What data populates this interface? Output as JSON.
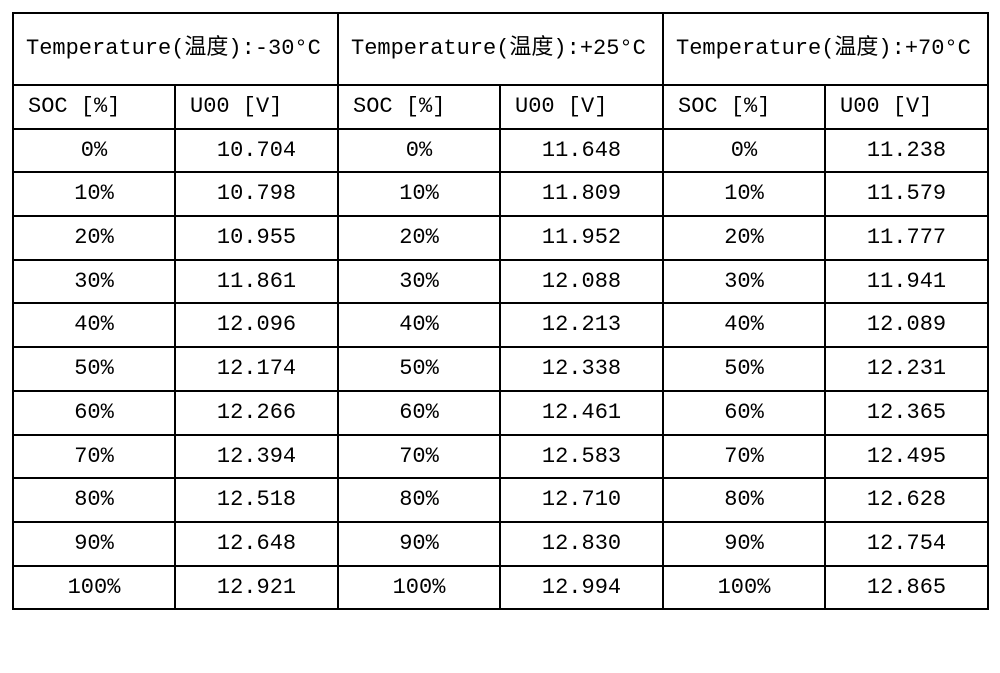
{
  "table": {
    "columns_per_group": [
      "SOC [%]",
      "U00 [V]"
    ],
    "groups": [
      {
        "header": "Temperature(温度):-30°C",
        "rows": [
          {
            "soc": "0%",
            "u00": "10.704"
          },
          {
            "soc": "10%",
            "u00": "10.798"
          },
          {
            "soc": "20%",
            "u00": "10.955"
          },
          {
            "soc": "30%",
            "u00": "11.861"
          },
          {
            "soc": "40%",
            "u00": "12.096"
          },
          {
            "soc": "50%",
            "u00": "12.174"
          },
          {
            "soc": "60%",
            "u00": "12.266"
          },
          {
            "soc": "70%",
            "u00": "12.394"
          },
          {
            "soc": "80%",
            "u00": "12.518"
          },
          {
            "soc": "90%",
            "u00": "12.648"
          },
          {
            "soc": "100%",
            "u00": "12.921"
          }
        ]
      },
      {
        "header": "Temperature(温度):+25°C",
        "rows": [
          {
            "soc": "0%",
            "u00": "11.648"
          },
          {
            "soc": "10%",
            "u00": "11.809"
          },
          {
            "soc": "20%",
            "u00": "11.952"
          },
          {
            "soc": "30%",
            "u00": "12.088"
          },
          {
            "soc": "40%",
            "u00": "12.213"
          },
          {
            "soc": "50%",
            "u00": "12.338"
          },
          {
            "soc": "60%",
            "u00": "12.461"
          },
          {
            "soc": "70%",
            "u00": "12.583"
          },
          {
            "soc": "80%",
            "u00": "12.710"
          },
          {
            "soc": "90%",
            "u00": "12.830"
          },
          {
            "soc": "100%",
            "u00": "12.994"
          }
        ]
      },
      {
        "header": "Temperature(温度):+70°C",
        "rows": [
          {
            "soc": "0%",
            "u00": "11.238"
          },
          {
            "soc": "10%",
            "u00": "11.579"
          },
          {
            "soc": "20%",
            "u00": "11.777"
          },
          {
            "soc": "30%",
            "u00": "11.941"
          },
          {
            "soc": "40%",
            "u00": "12.089"
          },
          {
            "soc": "50%",
            "u00": "12.231"
          },
          {
            "soc": "60%",
            "u00": "12.365"
          },
          {
            "soc": "70%",
            "u00": "12.495"
          },
          {
            "soc": "80%",
            "u00": "12.628"
          },
          {
            "soc": "90%",
            "u00": "12.754"
          },
          {
            "soc": "100%",
            "u00": "12.865"
          }
        ]
      }
    ]
  }
}
